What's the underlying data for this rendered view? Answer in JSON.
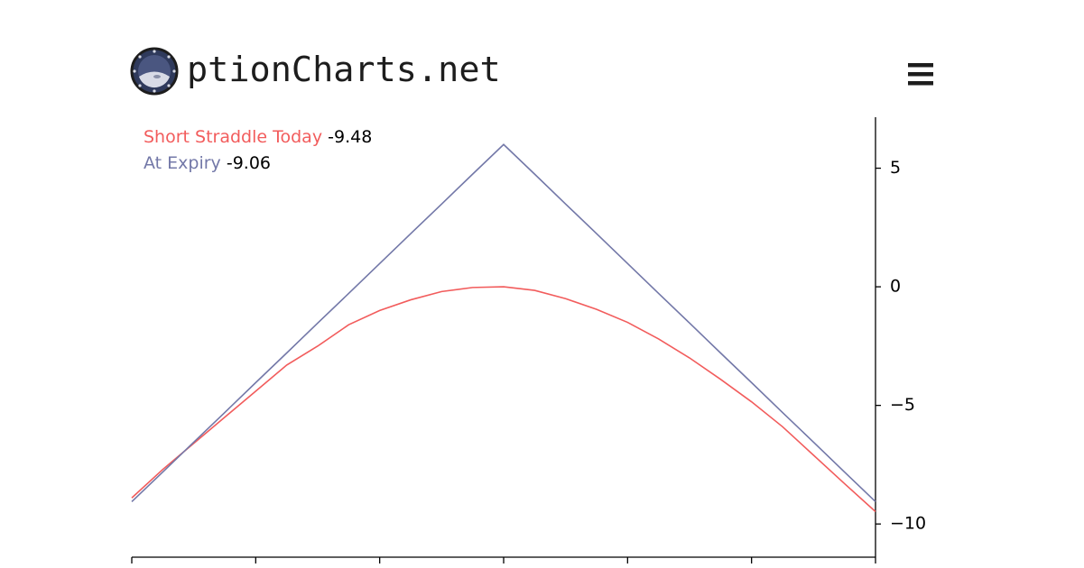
{
  "header": {
    "brand": "ptionCharts.net"
  },
  "chart_data": {
    "type": "line",
    "x": [
      0,
      1,
      2,
      3,
      4,
      5,
      6,
      7,
      8,
      9,
      10,
      11,
      12,
      13,
      14,
      15,
      16,
      17,
      18,
      19,
      20,
      21,
      22,
      23,
      24
    ],
    "xlim": [
      0,
      24
    ],
    "xticks": [
      0,
      4,
      8,
      12,
      16,
      20,
      24
    ],
    "ylim": [
      -11.4,
      7.15
    ],
    "yticks": [
      {
        "value": -10,
        "label": "−10"
      },
      {
        "value": -5,
        "label": "−5"
      },
      0,
      5
    ],
    "series": [
      {
        "name": "Short Straddle Today",
        "color": "#f25c5c",
        "values": [
          -8.9,
          -7.7,
          -6.6,
          -5.5,
          -4.4,
          -3.3,
          -2.5,
          -1.6,
          -1.0,
          -0.55,
          -0.2,
          -0.03,
          0,
          -0.15,
          -0.5,
          -0.95,
          -1.5,
          -2.2,
          -3.0,
          -3.9,
          -4.85,
          -5.9,
          -7.1,
          -8.3,
          -9.48
        ]
      },
      {
        "name": "At Expiry",
        "color": "#7378a8",
        "values": [
          -9.06,
          -7.81,
          -6.55,
          -5.3,
          -4.04,
          -2.79,
          -1.53,
          -0.28,
          0.98,
          2.24,
          3.49,
          4.75,
          6,
          4.75,
          3.49,
          2.24,
          0.98,
          -0.28,
          -1.53,
          -2.79,
          -4.04,
          -5.3,
          -6.55,
          -7.81,
          -9.06
        ]
      }
    ]
  }
}
